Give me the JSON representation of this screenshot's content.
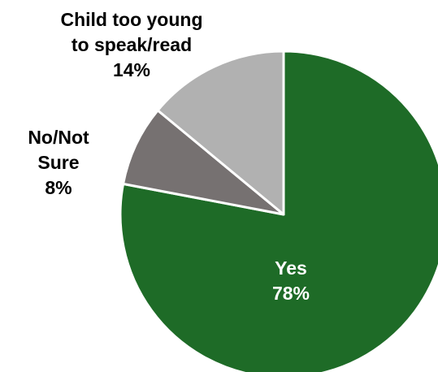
{
  "chart_data": {
    "type": "pie",
    "title": "",
    "slices": [
      {
        "label": "Yes",
        "label_lines": [
          "Yes"
        ],
        "value": 78,
        "display": "78%",
        "color": "#1e6b27",
        "label_color": "#ffffff"
      },
      {
        "label": "No/Not Sure",
        "label_lines": [
          "No/Not",
          "Sure"
        ],
        "value": 8,
        "display": "8%",
        "color": "#767171",
        "label_color": "#000000"
      },
      {
        "label": "Child too young to speak/read",
        "label_lines": [
          "Child too young",
          "to speak/read"
        ],
        "value": 14,
        "display": "14%",
        "color": "#b1b1b1",
        "label_color": "#000000"
      }
    ],
    "start": "12 o'clock",
    "direction": "clockwise",
    "legend": "none"
  }
}
